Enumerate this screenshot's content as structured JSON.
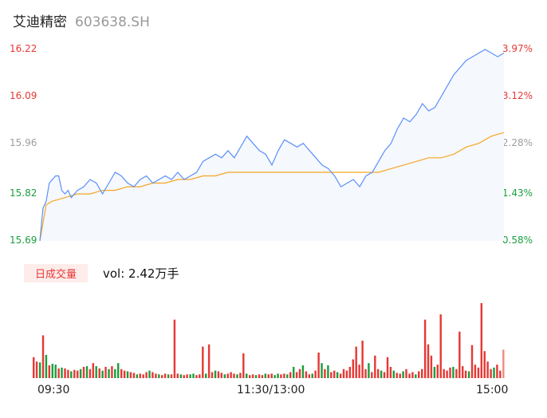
{
  "header": {
    "name": "艾迪精密",
    "code": "603638.SH"
  },
  "colors": {
    "price_line": "#5b8ff9",
    "avg_line": "#f5a623",
    "area_fill": "#f5f8fd",
    "up": "#e53935",
    "down": "#1a9e3f",
    "neutral": "#9e9e9e"
  },
  "volume": {
    "badge": "日成交量",
    "label": "vol: 2.42万手"
  },
  "chart_data": [
    {
      "type": "line",
      "title": "",
      "xlabel": "",
      "ylabel": "",
      "y_tick_labels": [
        "16.22",
        "16.09",
        "15.96",
        "15.82",
        "15.69"
      ],
      "y_tick_values": [
        16.22,
        16.09,
        15.96,
        15.82,
        15.69
      ],
      "right_tick_labels": [
        "3.97%",
        "3.12%",
        "2.28%",
        "1.43%",
        "0.58%"
      ],
      "x_tick_labels": [
        "09:30",
        "11:30/13:00",
        "15:00"
      ],
      "ylim": [
        15.69,
        16.22
      ],
      "grid": false,
      "series": [
        {
          "key": "price",
          "points": [
            [
              0,
              15.69
            ],
            [
              2,
              15.78
            ],
            [
              4,
              15.8
            ],
            [
              6,
              15.85
            ],
            [
              8,
              15.86
            ],
            [
              10,
              15.87
            ],
            [
              12,
              15.87
            ],
            [
              14,
              15.83
            ],
            [
              16,
              15.82
            ],
            [
              18,
              15.83
            ],
            [
              20,
              15.81
            ],
            [
              24,
              15.83
            ],
            [
              28,
              15.84
            ],
            [
              32,
              15.86
            ],
            [
              36,
              15.85
            ],
            [
              40,
              15.82
            ],
            [
              44,
              15.85
            ],
            [
              48,
              15.88
            ],
            [
              52,
              15.87
            ],
            [
              56,
              15.85
            ],
            [
              60,
              15.84
            ],
            [
              64,
              15.86
            ],
            [
              68,
              15.87
            ],
            [
              72,
              15.85
            ],
            [
              76,
              15.86
            ],
            [
              80,
              15.87
            ],
            [
              84,
              15.86
            ],
            [
              88,
              15.88
            ],
            [
              92,
              15.86
            ],
            [
              96,
              15.87
            ],
            [
              100,
              15.88
            ],
            [
              104,
              15.91
            ],
            [
              108,
              15.92
            ],
            [
              112,
              15.93
            ],
            [
              116,
              15.92
            ],
            [
              120,
              15.94
            ],
            [
              124,
              15.92
            ],
            [
              128,
              15.95
            ],
            [
              132,
              15.98
            ],
            [
              136,
              15.96
            ],
            [
              140,
              15.94
            ],
            [
              144,
              15.93
            ],
            [
              148,
              15.9
            ],
            [
              152,
              15.94
            ],
            [
              156,
              15.97
            ],
            [
              160,
              15.96
            ],
            [
              164,
              15.95
            ],
            [
              168,
              15.96
            ],
            [
              172,
              15.94
            ],
            [
              176,
              15.92
            ],
            [
              180,
              15.9
            ],
            [
              184,
              15.89
            ],
            [
              188,
              15.87
            ],
            [
              192,
              15.84
            ],
            [
              196,
              15.85
            ],
            [
              200,
              15.86
            ],
            [
              204,
              15.84
            ],
            [
              208,
              15.87
            ],
            [
              212,
              15.88
            ],
            [
              216,
              15.91
            ],
            [
              220,
              15.94
            ],
            [
              224,
              15.96
            ],
            [
              228,
              16.0
            ],
            [
              232,
              16.03
            ],
            [
              236,
              16.02
            ],
            [
              240,
              16.04
            ],
            [
              244,
              16.07
            ],
            [
              248,
              16.05
            ],
            [
              252,
              16.06
            ],
            [
              256,
              16.09
            ],
            [
              260,
              16.12
            ],
            [
              264,
              16.15
            ],
            [
              268,
              16.17
            ],
            [
              272,
              16.19
            ],
            [
              276,
              16.2
            ],
            [
              280,
              16.21
            ],
            [
              284,
              16.22
            ],
            [
              288,
              16.21
            ],
            [
              292,
              16.2
            ],
            [
              296,
              16.21
            ]
          ]
        },
        {
          "key": "average",
          "points": [
            [
              0,
              15.69
            ],
            [
              4,
              15.79
            ],
            [
              8,
              15.8
            ],
            [
              16,
              15.81
            ],
            [
              24,
              15.82
            ],
            [
              32,
              15.82
            ],
            [
              40,
              15.83
            ],
            [
              48,
              15.83
            ],
            [
              56,
              15.84
            ],
            [
              64,
              15.84
            ],
            [
              72,
              15.85
            ],
            [
              80,
              15.85
            ],
            [
              88,
              15.86
            ],
            [
              96,
              15.86
            ],
            [
              104,
              15.87
            ],
            [
              112,
              15.87
            ],
            [
              120,
              15.88
            ],
            [
              128,
              15.88
            ],
            [
              136,
              15.88
            ],
            [
              144,
              15.88
            ],
            [
              152,
              15.88
            ],
            [
              160,
              15.88
            ],
            [
              168,
              15.88
            ],
            [
              176,
              15.88
            ],
            [
              184,
              15.88
            ],
            [
              192,
              15.88
            ],
            [
              200,
              15.88
            ],
            [
              208,
              15.88
            ],
            [
              216,
              15.88
            ],
            [
              224,
              15.89
            ],
            [
              232,
              15.9
            ],
            [
              240,
              15.91
            ],
            [
              248,
              15.92
            ],
            [
              256,
              15.92
            ],
            [
              264,
              15.93
            ],
            [
              272,
              15.95
            ],
            [
              280,
              15.96
            ],
            [
              288,
              15.98
            ],
            [
              296,
              15.99
            ]
          ]
        }
      ]
    },
    {
      "type": "bar",
      "title": "",
      "xlabel": "",
      "ylabel": "",
      "ylim": [
        0,
        100
      ],
      "bars": [
        [
          0,
          28,
          "u"
        ],
        [
          1,
          22,
          "u"
        ],
        [
          2,
          21,
          "d"
        ],
        [
          3,
          57,
          "u"
        ],
        [
          4,
          31,
          "d"
        ],
        [
          5,
          17,
          "u"
        ],
        [
          6,
          19,
          "d"
        ],
        [
          7,
          18,
          "d"
        ],
        [
          8,
          13,
          "u"
        ],
        [
          9,
          14,
          "d"
        ],
        [
          10,
          13,
          "u"
        ],
        [
          11,
          11,
          "u"
        ],
        [
          12,
          9,
          "d"
        ],
        [
          13,
          11,
          "u"
        ],
        [
          14,
          10,
          "u"
        ],
        [
          15,
          12,
          "d"
        ],
        [
          16,
          15,
          "u"
        ],
        [
          17,
          16,
          "d"
        ],
        [
          18,
          12,
          "u"
        ],
        [
          19,
          20,
          "u"
        ],
        [
          20,
          16,
          "d"
        ],
        [
          21,
          13,
          "u"
        ],
        [
          22,
          10,
          "d"
        ],
        [
          23,
          15,
          "u"
        ],
        [
          24,
          12,
          "d"
        ],
        [
          25,
          16,
          "u"
        ],
        [
          26,
          12,
          "d"
        ],
        [
          27,
          20,
          "d"
        ],
        [
          28,
          12,
          "u"
        ],
        [
          29,
          10,
          "u"
        ],
        [
          30,
          9,
          "d"
        ],
        [
          31,
          8,
          "u"
        ],
        [
          32,
          7,
          "u"
        ],
        [
          33,
          5,
          "d"
        ],
        [
          34,
          6,
          "u"
        ],
        [
          35,
          5,
          "u"
        ],
        [
          36,
          8,
          "u"
        ],
        [
          37,
          10,
          "d"
        ],
        [
          38,
          8,
          "u"
        ],
        [
          39,
          6,
          "u"
        ],
        [
          40,
          5,
          "d"
        ],
        [
          41,
          4,
          "u"
        ],
        [
          42,
          6,
          "u"
        ],
        [
          43,
          5,
          "d"
        ],
        [
          44,
          5,
          "u"
        ],
        [
          45,
          78,
          "u"
        ],
        [
          46,
          6,
          "u"
        ],
        [
          47,
          5,
          "d"
        ],
        [
          48,
          4,
          "u"
        ],
        [
          49,
          5,
          "u"
        ],
        [
          50,
          5,
          "d"
        ],
        [
          51,
          6,
          "d"
        ],
        [
          52,
          4,
          "u"
        ],
        [
          53,
          5,
          "u"
        ],
        [
          54,
          42,
          "u"
        ],
        [
          55,
          6,
          "d"
        ],
        [
          56,
          45,
          "u"
        ],
        [
          57,
          8,
          "u"
        ],
        [
          58,
          10,
          "d"
        ],
        [
          59,
          9,
          "u"
        ],
        [
          60,
          7,
          "u"
        ],
        [
          61,
          5,
          "d"
        ],
        [
          62,
          6,
          "u"
        ],
        [
          63,
          8,
          "u"
        ],
        [
          64,
          6,
          "u"
        ],
        [
          65,
          5,
          "d"
        ],
        [
          66,
          7,
          "u"
        ],
        [
          67,
          33,
          "u"
        ],
        [
          68,
          6,
          "d"
        ],
        [
          69,
          4,
          "u"
        ],
        [
          70,
          5,
          "u"
        ],
        [
          71,
          4,
          "d"
        ],
        [
          72,
          5,
          "u"
        ],
        [
          73,
          4,
          "u"
        ],
        [
          74,
          6,
          "d"
        ],
        [
          75,
          5,
          "u"
        ],
        [
          76,
          6,
          "u"
        ],
        [
          77,
          4,
          "d"
        ],
        [
          78,
          6,
          "d"
        ],
        [
          79,
          5,
          "u"
        ],
        [
          80,
          6,
          "u"
        ],
        [
          81,
          5,
          "d"
        ],
        [
          82,
          8,
          "u"
        ],
        [
          83,
          15,
          "d"
        ],
        [
          84,
          8,
          "u"
        ],
        [
          85,
          12,
          "u"
        ],
        [
          86,
          17,
          "d"
        ],
        [
          87,
          9,
          "u"
        ],
        [
          88,
          5,
          "u"
        ],
        [
          89,
          6,
          "d"
        ],
        [
          90,
          10,
          "u"
        ],
        [
          91,
          34,
          "u"
        ],
        [
          92,
          20,
          "d"
        ],
        [
          93,
          12,
          "u"
        ],
        [
          94,
          17,
          "d"
        ],
        [
          95,
          8,
          "u"
        ],
        [
          96,
          10,
          "u"
        ],
        [
          97,
          8,
          "d"
        ],
        [
          98,
          6,
          "u"
        ],
        [
          99,
          12,
          "u"
        ],
        [
          100,
          10,
          "u"
        ],
        [
          101,
          15,
          "u"
        ],
        [
          102,
          25,
          "u"
        ],
        [
          103,
          42,
          "u"
        ],
        [
          104,
          18,
          "u"
        ],
        [
          105,
          50,
          "u"
        ],
        [
          106,
          12,
          "u"
        ],
        [
          107,
          20,
          "d"
        ],
        [
          108,
          8,
          "u"
        ],
        [
          109,
          30,
          "u"
        ],
        [
          110,
          12,
          "u"
        ],
        [
          111,
          10,
          "d"
        ],
        [
          112,
          8,
          "u"
        ],
        [
          113,
          28,
          "u"
        ],
        [
          114,
          15,
          "u"
        ],
        [
          115,
          10,
          "d"
        ],
        [
          116,
          7,
          "u"
        ],
        [
          117,
          6,
          "u"
        ],
        [
          118,
          9,
          "d"
        ],
        [
          119,
          12,
          "u"
        ],
        [
          120,
          6,
          "u"
        ],
        [
          121,
          8,
          "u"
        ],
        [
          122,
          5,
          "d"
        ],
        [
          123,
          9,
          "u"
        ],
        [
          124,
          12,
          "u"
        ],
        [
          125,
          78,
          "u"
        ],
        [
          126,
          45,
          "u"
        ],
        [
          127,
          30,
          "u"
        ],
        [
          128,
          15,
          "d"
        ],
        [
          129,
          18,
          "u"
        ],
        [
          130,
          85,
          "u"
        ],
        [
          131,
          12,
          "u"
        ],
        [
          132,
          10,
          "u"
        ],
        [
          133,
          14,
          "u"
        ],
        [
          134,
          15,
          "d"
        ],
        [
          135,
          12,
          "u"
        ],
        [
          136,
          62,
          "u"
        ],
        [
          137,
          16,
          "u"
        ],
        [
          138,
          10,
          "u"
        ],
        [
          139,
          9,
          "d"
        ],
        [
          140,
          44,
          "u"
        ],
        [
          141,
          18,
          "u"
        ],
        [
          142,
          14,
          "u"
        ],
        [
          143,
          100,
          "u"
        ],
        [
          144,
          36,
          "u"
        ],
        [
          145,
          22,
          "u"
        ],
        [
          146,
          12,
          "u"
        ],
        [
          147,
          14,
          "d"
        ],
        [
          148,
          18,
          "u"
        ],
        [
          149,
          10,
          "u"
        ],
        [
          150,
          38,
          "n"
        ]
      ]
    }
  ]
}
